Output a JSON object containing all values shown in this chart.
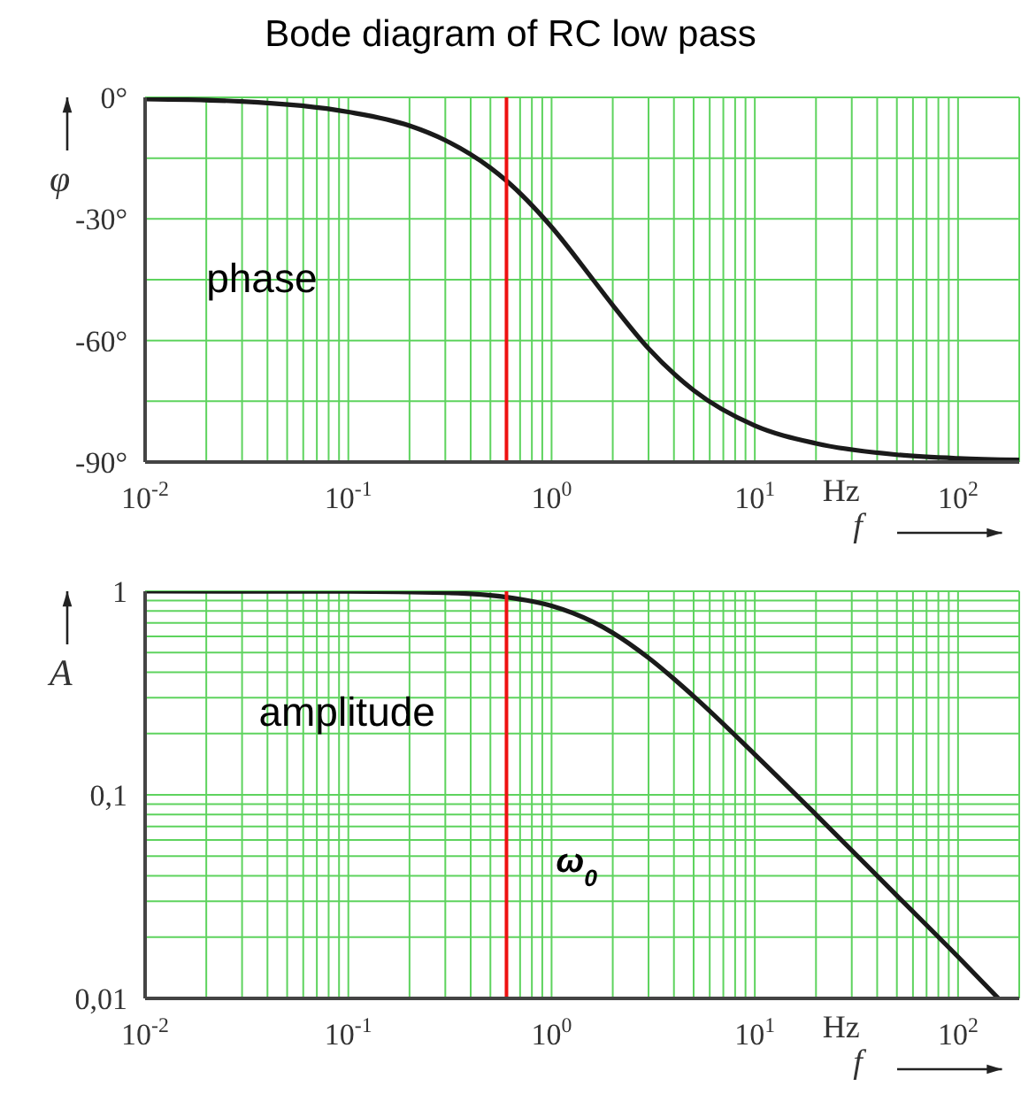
{
  "chart_data": [
    {
      "type": "line",
      "title": "Bode diagram of RC low pass",
      "xlabel": "f",
      "ylabel": "φ",
      "log": "x",
      "grid": true,
      "color": "#1a1a1a",
      "x": [
        0.01,
        0.03,
        0.1,
        0.2,
        0.3,
        0.5,
        0.6,
        1,
        1.6,
        2,
        3,
        5,
        10,
        20,
        50,
        100,
        200
      ],
      "values": [
        -0.4,
        -1,
        -3.6,
        -7,
        -10.6,
        -17.4,
        -20.6,
        -32,
        -45,
        -51.3,
        -62,
        -72.3,
        -81,
        -85.4,
        -88.2,
        -89.1,
        -89.5
      ],
      "xlim": [
        0.01,
        200
      ],
      "xticks": [
        {
          "value": 0.01,
          "label": "10$^{-2}$"
        },
        {
          "value": 0.02,
          "label": null
        },
        {
          "value": 0.03,
          "label": null
        },
        {
          "value": 0.04,
          "label": null
        },
        {
          "value": 0.05,
          "label": null
        },
        {
          "value": 0.06,
          "label": null
        },
        {
          "value": 0.07,
          "label": null
        },
        {
          "value": 0.08,
          "label": null
        },
        {
          "value": 0.09,
          "label": null
        },
        {
          "value": 0.1,
          "label": "10$^{-1}$"
        },
        {
          "value": 0.2,
          "label": null
        },
        {
          "value": 0.3,
          "label": null
        },
        {
          "value": 0.4,
          "label": null
        },
        {
          "value": 0.5,
          "label": null
        },
        {
          "value": 0.6,
          "label": null
        },
        {
          "value": 0.7,
          "label": null
        },
        {
          "value": 0.8,
          "label": null
        },
        {
          "value": 0.9,
          "label": null
        },
        {
          "value": 1,
          "label": "10$^{0}$"
        },
        {
          "value": 2,
          "label": null
        },
        {
          "value": 3,
          "label": null
        },
        {
          "value": 4,
          "label": null
        },
        {
          "value": 5,
          "label": null
        },
        {
          "value": 6,
          "label": null
        },
        {
          "value": 7,
          "label": null
        },
        {
          "value": 8,
          "label": null
        },
        {
          "value": 9,
          "label": null
        },
        {
          "value": 10,
          "label": "10$^{1}$"
        },
        {
          "value": 20,
          "label": null
        },
        {
          "value": 30,
          "label": null
        },
        {
          "value": 40,
          "label": null
        },
        {
          "value": 50,
          "label": null
        },
        {
          "value": 60,
          "label": null
        },
        {
          "value": 70,
          "label": null
        },
        {
          "value": 80,
          "label": null
        },
        {
          "value": 90,
          "label": null
        },
        {
          "value": 100,
          "label": "10$^{2}$"
        }
      ],
      "ylim": [
        -90,
        0
      ],
      "yticks": [
        {
          "value": -90,
          "label": "-90°"
        },
        {
          "value": -75,
          "label": null
        },
        {
          "value": -60,
          "label": "-60°"
        },
        {
          "value": -45,
          "label": null
        },
        {
          "value": -30,
          "label": "-30°"
        },
        {
          "value": -15,
          "label": null
        },
        {
          "value": 0,
          "label": "0°"
        }
      ],
      "annotations": [
        "phase",
        "Hz"
      ],
      "ref_lines": [
        {
          "axis": "x",
          "value": 0.6,
          "color": "#ee1111"
        }
      ]
    },
    {
      "type": "line",
      "xlabel": "f",
      "ylabel": "A",
      "log": "xy",
      "grid": true,
      "color": "#1a1a1a",
      "x": [
        0.01,
        0.1,
        0.3,
        0.6,
        1,
        1.6,
        2,
        3,
        5,
        10,
        20,
        50,
        100,
        158
      ],
      "values": [
        1,
        0.998,
        0.983,
        0.936,
        0.848,
        0.707,
        0.625,
        0.471,
        0.305,
        0.158,
        0.08,
        0.032,
        0.016,
        0.01
      ],
      "xlim": [
        0.01,
        200
      ],
      "xticks": [
        {
          "value": 0.01,
          "label": "10$^{-2}$"
        },
        {
          "value": 0.02,
          "label": null
        },
        {
          "value": 0.03,
          "label": null
        },
        {
          "value": 0.04,
          "label": null
        },
        {
          "value": 0.05,
          "label": null
        },
        {
          "value": 0.06,
          "label": null
        },
        {
          "value": 0.07,
          "label": null
        },
        {
          "value": 0.08,
          "label": null
        },
        {
          "value": 0.09,
          "label": null
        },
        {
          "value": 0.1,
          "label": "10$^{-1}$"
        },
        {
          "value": 0.2,
          "label": null
        },
        {
          "value": 0.3,
          "label": null
        },
        {
          "value": 0.4,
          "label": null
        },
        {
          "value": 0.5,
          "label": null
        },
        {
          "value": 0.6,
          "label": null
        },
        {
          "value": 0.7,
          "label": null
        },
        {
          "value": 0.8,
          "label": null
        },
        {
          "value": 0.9,
          "label": null
        },
        {
          "value": 1,
          "label": "10$^{0}$"
        },
        {
          "value": 2,
          "label": null
        },
        {
          "value": 3,
          "label": null
        },
        {
          "value": 4,
          "label": null
        },
        {
          "value": 5,
          "label": null
        },
        {
          "value": 6,
          "label": null
        },
        {
          "value": 7,
          "label": null
        },
        {
          "value": 8,
          "label": null
        },
        {
          "value": 9,
          "label": null
        },
        {
          "value": 10,
          "label": "10$^{1}$"
        },
        {
          "value": 20,
          "label": null
        },
        {
          "value": 30,
          "label": null
        },
        {
          "value": 40,
          "label": null
        },
        {
          "value": 50,
          "label": null
        },
        {
          "value": 60,
          "label": null
        },
        {
          "value": 70,
          "label": null
        },
        {
          "value": 80,
          "label": null
        },
        {
          "value": 90,
          "label": null
        },
        {
          "value": 100,
          "label": "10$^{2}$"
        }
      ],
      "ylim": [
        0.01,
        1
      ],
      "yticks": [
        {
          "value": 0.01,
          "label": "0,01"
        },
        {
          "value": 0.02,
          "label": null
        },
        {
          "value": 0.03,
          "label": null
        },
        {
          "value": 0.04,
          "label": null
        },
        {
          "value": 0.05,
          "label": null
        },
        {
          "value": 0.06,
          "label": null
        },
        {
          "value": 0.07,
          "label": null
        },
        {
          "value": 0.08,
          "label": null
        },
        {
          "value": 0.09,
          "label": null
        },
        {
          "value": 0.1,
          "label": "0,1"
        },
        {
          "value": 0.2,
          "label": null
        },
        {
          "value": 0.3,
          "label": null
        },
        {
          "value": 0.4,
          "label": null
        },
        {
          "value": 0.5,
          "label": null
        },
        {
          "value": 0.6,
          "label": null
        },
        {
          "value": 0.7,
          "label": null
        },
        {
          "value": 0.8,
          "label": null
        },
        {
          "value": 0.9,
          "label": null
        },
        1
      ],
      "annotations": [
        "amplitude",
        "Hz"
      ],
      "ref_lines": [
        {
          "axis": "x",
          "value": 0.6,
          "label": "ω$_{0}$",
          "color": "#ee1111"
        }
      ]
    }
  ]
}
